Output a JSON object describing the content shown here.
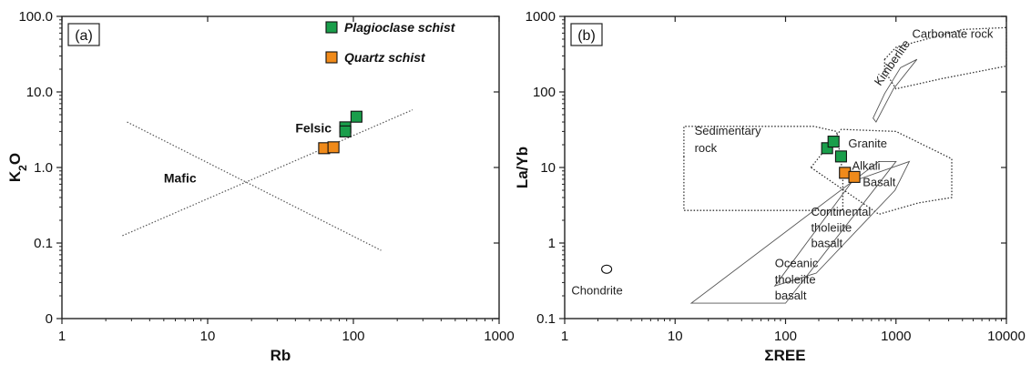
{
  "colors": {
    "plagioclase": "#1a9e4b",
    "quartz": "#f08a1a",
    "frame": "#222222"
  },
  "chart_data": [
    {
      "type": "scatter",
      "panel_label": "(a)",
      "xlabel": "Rb",
      "ylabel": "K2O",
      "xscale": "log",
      "yscale": "log",
      "xlim": [
        1,
        1000
      ],
      "ylim": [
        0.01,
        100
      ],
      "x_ticks": [
        1,
        10,
        100,
        1000
      ],
      "x_tick_labels": [
        "1",
        "10",
        "100",
        "1000"
      ],
      "y_ticks": [
        0.01,
        0.1,
        1,
        10,
        100
      ],
      "y_tick_labels": [
        "0",
        "0.1",
        "1.0",
        "10.0",
        "100.0"
      ],
      "grid": false,
      "legend_position": "top-right",
      "series": [
        {
          "name": "Plagioclase schist",
          "color": "#1a9e4b",
          "marker": "square",
          "points": [
            [
              88,
              3.4
            ],
            [
              88,
              3.0
            ],
            [
              105,
              4.7
            ]
          ]
        },
        {
          "name": "Quartz schist",
          "color": "#f08a1a",
          "marker": "square",
          "points": [
            [
              63,
              1.8
            ],
            [
              73,
              1.85
            ]
          ]
        }
      ],
      "lines": [
        {
          "style": "dotted",
          "points": [
            [
              2.6,
              0.125
            ],
            [
              255,
              5.8
            ]
          ]
        },
        {
          "style": "dotted",
          "points": [
            [
              2.8,
              4.0
            ],
            [
              155,
              0.08
            ]
          ]
        }
      ],
      "field_labels": [
        {
          "text": "Felsic",
          "x": 40,
          "y": 2.9
        },
        {
          "text": "Mafic",
          "x": 5.0,
          "y": 0.63
        }
      ]
    },
    {
      "type": "scatter",
      "panel_label": "(b)",
      "xlabel": "ΣREE",
      "ylabel": "La/Yb",
      "xscale": "log",
      "yscale": "log",
      "xlim": [
        1,
        10000
      ],
      "ylim": [
        0.1,
        1000
      ],
      "x_ticks": [
        1,
        10,
        100,
        1000,
        10000
      ],
      "x_tick_labels": [
        "1",
        "10",
        "100",
        "1000",
        "10000"
      ],
      "y_ticks": [
        0.1,
        1,
        10,
        100,
        1000
      ],
      "y_tick_labels": [
        "0.1",
        "1",
        "10",
        "100",
        "1000"
      ],
      "grid": false,
      "series": [
        {
          "name": "Plagioclase schist",
          "color": "#1a9e4b",
          "marker": "square",
          "points": [
            [
              238,
              18
            ],
            [
              272,
              22
            ],
            [
              318,
              14
            ]
          ]
        },
        {
          "name": "Quartz schist",
          "color": "#f08a1a",
          "marker": "square",
          "points": [
            [
              345,
              8.5
            ],
            [
              420,
              7.5
            ]
          ]
        },
        {
          "name": "",
          "color": "#ffffff",
          "marker": "circle",
          "points": [
            [
              2.4,
              0.45
            ]
          ]
        }
      ],
      "regions": [
        {
          "name": "Sedimentary rock",
          "style": "dotted",
          "points": [
            [
              12,
              14
            ],
            [
              12,
              2.7
            ],
            [
              180,
              2.7
            ],
            [
              330,
              2.7
            ],
            [
              330,
              8
            ],
            [
              290,
              30
            ],
            [
              180,
              35
            ],
            [
              12,
              35
            ]
          ]
        },
        {
          "name": "Granite",
          "style": "dotted",
          "points": [
            [
              170,
              10
            ],
            [
              320,
              32
            ],
            [
              1000,
              30
            ],
            [
              3200,
              13
            ],
            [
              3200,
              4
            ],
            [
              1600,
              3.4
            ],
            [
              700,
              2.4
            ],
            [
              170,
              10
            ]
          ]
        },
        {
          "name": "Carbonate rock",
          "style": "dotted",
          "points": [
            [
              790,
              270
            ],
            [
              1000,
              390
            ],
            [
              4000,
              670
            ],
            [
              10000,
              710
            ],
            [
              10000,
              220
            ],
            [
              2600,
              150
            ],
            [
              1000,
              110
            ],
            [
              790,
              190
            ]
          ]
        },
        {
          "name": "Kimberlite",
          "style": "solid",
          "points": [
            [
              660,
              40
            ],
            [
              950,
              110
            ],
            [
              1550,
              270
            ],
            [
              1100,
              210
            ],
            [
              790,
              95
            ],
            [
              620,
              45
            ]
          ]
        },
        {
          "name": "Continental tholeiite basalt + Alkali Basalt",
          "style": "solid",
          "points": [
            [
              80,
              0.27
            ],
            [
              400,
              6.5
            ],
            [
              1320,
              12
            ],
            [
              980,
              5
            ],
            [
              190,
              0.4
            ]
          ]
        },
        {
          "name": "Oceanic tholeiite basalt",
          "style": "solid",
          "points": [
            [
              14,
              0.16
            ],
            [
              100,
              0.16
            ],
            [
              1000,
              12
            ],
            [
              700,
              12
            ]
          ]
        }
      ],
      "region_labels": [
        {
          "text": "Carbonate rock",
          "x": 1400,
          "y": 520
        },
        {
          "text": "Kimberlite",
          "x": 720,
          "y": 118,
          "rotate": -55
        },
        {
          "text": "Sedimentary",
          "x": 15,
          "y": 27
        },
        {
          "text": "rock",
          "x": 15,
          "y": 16
        },
        {
          "text": "Granite",
          "x": 370,
          "y": 18.5
        },
        {
          "text": "Alkali",
          "x": 400,
          "y": 9.3
        },
        {
          "text": "Basalt",
          "x": 500,
          "y": 5.7
        },
        {
          "text": "Continental",
          "x": 170,
          "y": 2.3
        },
        {
          "text": "tholeiite",
          "x": 170,
          "y": 1.42
        },
        {
          "text": "basalt",
          "x": 170,
          "y": 0.88
        },
        {
          "text": "Oceanic",
          "x": 80,
          "y": 0.48
        },
        {
          "text": "tholeiite",
          "x": 80,
          "y": 0.29
        },
        {
          "text": "basalt",
          "x": 80,
          "y": 0.18
        },
        {
          "text": "Chondrite",
          "x": 1.15,
          "y": 0.21
        }
      ]
    }
  ]
}
